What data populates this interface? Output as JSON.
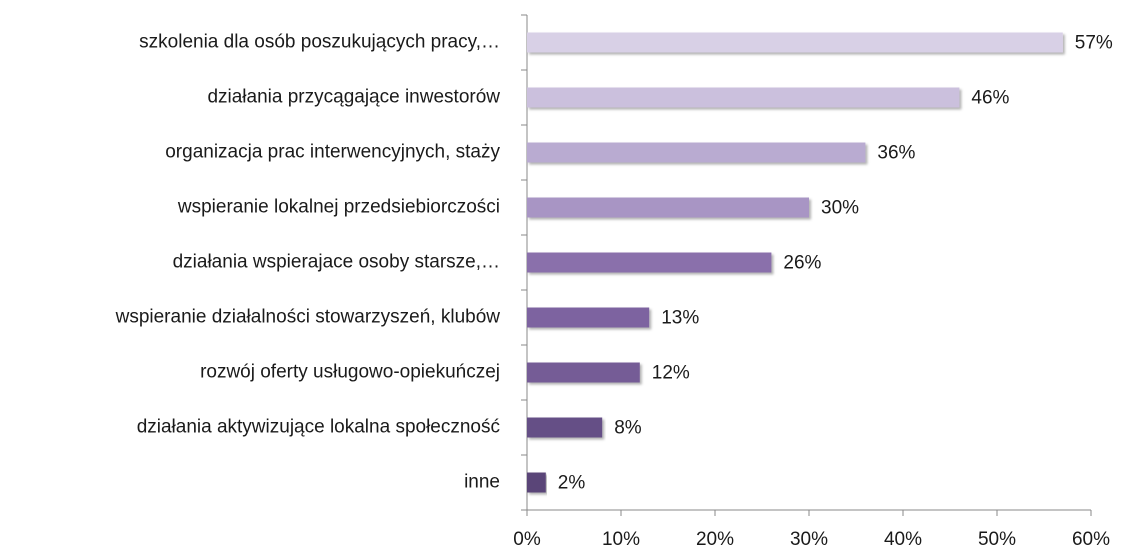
{
  "chart_data": {
    "type": "bar",
    "orientation": "horizontal",
    "categories": [
      "szkolenia dla osób poszukujących pracy,…",
      "działania przycągające inwestorów",
      "organizacja prac interwencyjnych, staży",
      "wspieranie lokalnej przedsiebiorczości",
      "działania wspierajace osoby starsze,…",
      "wspieranie działalności stowarzyszeń, klubów",
      "rozwój oferty usługowo-opiekuńczej",
      "działania aktywizujące lokalna społeczność",
      "inne"
    ],
    "values": [
      57,
      46,
      36,
      30,
      26,
      13,
      12,
      8,
      2
    ],
    "value_labels": [
      "57%",
      "46%",
      "36%",
      "30%",
      "26%",
      "13%",
      "12%",
      "8%",
      "2%"
    ],
    "colors": [
      "#d8d0e6",
      "#cbc0dd",
      "#b9abd1",
      "#a895c4",
      "#8a70ab",
      "#7d64a0",
      "#745c96",
      "#654f86",
      "#5a4578"
    ],
    "xlim": [
      0,
      60
    ],
    "xticks": [
      {
        "value": 0,
        "label": "0%"
      },
      {
        "value": 10,
        "label": "10%"
      },
      {
        "value": 20,
        "label": "20%"
      },
      {
        "value": 30,
        "label": "30%"
      },
      {
        "value": 40,
        "label": "40%"
      },
      {
        "value": 50,
        "label": "50%"
      },
      {
        "value": 60,
        "label": "60%"
      }
    ],
    "grid": false
  }
}
